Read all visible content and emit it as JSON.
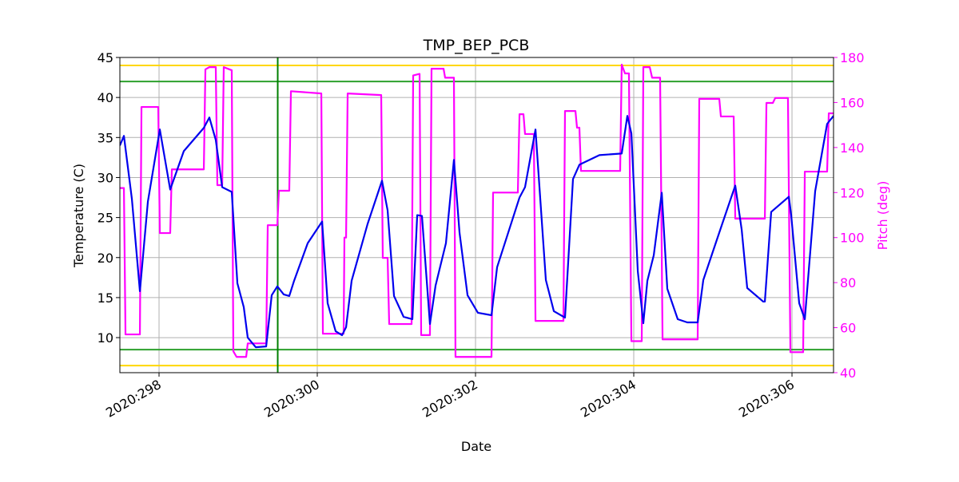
{
  "chart_data": {
    "type": "line",
    "title": "TMP_BEP_PCB",
    "xlabel": "Date",
    "ylabel": "Temperature (C)",
    "y2label": "Pitch (deg)",
    "grid": true,
    "xlim": [
      297.505,
      306.525
    ],
    "xticks": [
      {
        "value": 298,
        "label": "2020:298"
      },
      {
        "value": 300,
        "label": "2020:300"
      },
      {
        "value": 302,
        "label": "2020:302"
      },
      {
        "value": 304,
        "label": "2020:304"
      },
      {
        "value": 306,
        "label": "2020:306"
      }
    ],
    "ylim": [
      5.62,
      45
    ],
    "yticks": [
      10,
      15,
      20,
      25,
      30,
      35,
      40,
      45
    ],
    "y2lim": [
      40,
      180
    ],
    "y2ticks": [
      40,
      60,
      80,
      100,
      120,
      140,
      160,
      180
    ],
    "y2color": "#ff00ff",
    "hlines": [
      {
        "value": 44,
        "color": "#ffd700"
      },
      {
        "value": 6.5,
        "color": "#ffd700"
      },
      {
        "value": 42,
        "color": "#2ca02c"
      },
      {
        "value": 8.5,
        "color": "#2ca02c"
      }
    ],
    "vlines": [
      {
        "value": 299.5,
        "color": "#008000"
      }
    ],
    "series": [
      {
        "color": "#ff00ff",
        "axis": "y2",
        "x": [
          297.505,
          297.556,
          297.576,
          297.758,
          297.778,
          297.99,
          298.01,
          298.141,
          298.162,
          298.566,
          298.586,
          298.636,
          298.717,
          298.737,
          298.798,
          298.818,
          298.919,
          298.939,
          298.98,
          299.101,
          299.121,
          299.354,
          299.374,
          299.495,
          299.515,
          299.646,
          299.667,
          300.051,
          300.071,
          300.333,
          300.343,
          300.364,
          300.384,
          300.808,
          300.828,
          300.889,
          300.909,
          301.192,
          301.212,
          301.293,
          301.313,
          301.424,
          301.444,
          301.596,
          301.616,
          301.727,
          301.747,
          302.202,
          302.222,
          302.535,
          302.556,
          302.606,
          302.626,
          302.737,
          302.758,
          303.111,
          303.131,
          303.263,
          303.283,
          303.313,
          303.333,
          303.828,
          303.848,
          303.889,
          303.939,
          303.97,
          304.101,
          304.121,
          304.202,
          304.232,
          304.333,
          304.364,
          304.808,
          304.828,
          305.081,
          305.101,
          305.263,
          305.283,
          305.657,
          305.677,
          305.758,
          305.788,
          305.949,
          305.98,
          306.141,
          306.162,
          306.444,
          306.465,
          306.525
        ],
        "values": [
          122,
          122,
          57,
          57,
          158,
          158,
          102,
          102,
          130.3,
          130.3,
          174.7,
          175.7,
          175.7,
          123.3,
          123.3,
          175.7,
          174.3,
          49.5,
          47,
          47,
          53,
          53,
          105.5,
          105.5,
          120.8,
          120.8,
          165,
          164,
          57.3,
          57.3,
          100,
          100,
          164,
          163.3,
          91,
          91,
          61.6,
          61.6,
          172,
          172.7,
          56.7,
          56.7,
          175,
          175,
          171,
          171,
          47,
          47,
          120,
          120,
          154.8,
          154.8,
          146,
          146,
          63,
          63,
          156.2,
          156.2,
          148.8,
          148.8,
          129.6,
          129.6,
          176.8,
          172.9,
          172.9,
          54,
          54,
          175.7,
          175.7,
          171,
          171,
          54.8,
          54.8,
          161.6,
          161.6,
          153.8,
          153.8,
          108.4,
          108.4,
          159.8,
          159.8,
          162,
          162,
          49.1,
          49.1,
          129.3,
          129.3,
          155.2,
          155.2
        ]
      },
      {
        "color": "#0000ee",
        "axis": "y",
        "x": [
          297.505,
          297.556,
          297.657,
          297.758,
          297.859,
          298.01,
          298.141,
          298.313,
          298.566,
          298.636,
          298.717,
          298.798,
          298.919,
          298.99,
          299.071,
          299.121,
          299.222,
          299.354,
          299.424,
          299.495,
          299.576,
          299.646,
          299.707,
          299.879,
          300.061,
          300.131,
          300.232,
          300.313,
          300.364,
          300.434,
          300.636,
          300.818,
          300.889,
          300.97,
          301.091,
          301.202,
          301.263,
          301.323,
          301.424,
          301.495,
          301.626,
          301.727,
          301.798,
          301.899,
          302.03,
          302.202,
          302.273,
          302.556,
          302.626,
          302.758,
          302.889,
          302.99,
          303.131,
          303.232,
          303.313,
          303.566,
          303.848,
          303.919,
          303.97,
          304.051,
          304.121,
          304.172,
          304.253,
          304.354,
          304.424,
          304.556,
          304.677,
          304.808,
          304.879,
          305.111,
          305.283,
          305.364,
          305.434,
          305.636,
          305.657,
          305.737,
          305.96,
          305.99,
          306.091,
          306.162,
          306.293,
          306.444,
          306.525
        ],
        "values": [
          34,
          35.2,
          27.3,
          15.8,
          27,
          36,
          28.5,
          33.3,
          36.2,
          37.5,
          34.7,
          28.8,
          28.2,
          16.8,
          13.8,
          10,
          8.8,
          8.9,
          15.3,
          16.4,
          15.4,
          15.2,
          17.1,
          21.8,
          24.5,
          14.3,
          10.8,
          10.3,
          11.3,
          17.1,
          24.2,
          29.6,
          25.9,
          15.2,
          12.6,
          12.3,
          25.3,
          25.2,
          11.7,
          16.5,
          21.8,
          32.2,
          23.1,
          15.3,
          13.1,
          12.8,
          18.8,
          27.5,
          28.8,
          36,
          17.2,
          13.3,
          12.5,
          29.8,
          31.6,
          32.8,
          33,
          37.7,
          35.5,
          18.3,
          11.8,
          17.1,
          20.3,
          28.1,
          16.1,
          12.3,
          11.9,
          11.9,
          17.2,
          24,
          29,
          23.5,
          16.2,
          14.5,
          14.5,
          25.7,
          27.6,
          25.3,
          14.3,
          12.3,
          28.3,
          36.7,
          37.7
        ]
      }
    ]
  }
}
